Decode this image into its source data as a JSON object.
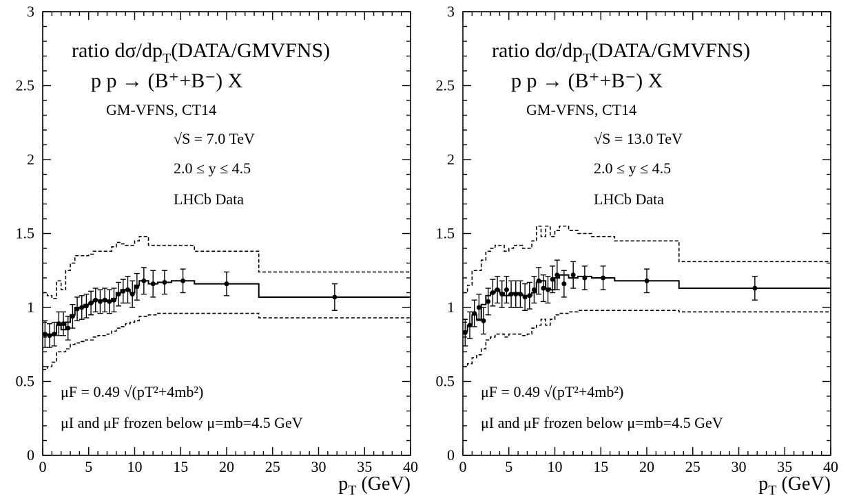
{
  "chart_data": [
    {
      "type": "line",
      "panel": "left",
      "title_line1": "ratio dσ/dp",
      "title_sub": "T",
      "title_rest": "(DATA/GMVFNS)",
      "process": "p p → (B⁺+B⁻) X",
      "labels": [
        "GM-VFNS, CT14",
        "√S = 7.0 TeV",
        "2.0 ≤  y ≤ 4.5",
        "LHCb Data"
      ],
      "scale_label": "μF = 0.49 √(pT²+4mb²)",
      "frozen_label": "μI and μF frozen below  μ=mb=4.5 GeV",
      "xlabel": "p",
      "xlabel_sub": "T",
      "xlabel_unit": " (GeV)",
      "xlim": [
        0,
        40
      ],
      "ylim": [
        0,
        3
      ],
      "x_ticks": [
        "0",
        "5",
        "10",
        "15",
        "20",
        "25",
        "30",
        "35",
        "40"
      ],
      "y_ticks": [
        "0",
        "0.5",
        "1",
        "1.5",
        "2",
        "2.5",
        "3"
      ],
      "bin_edges": [
        0,
        0.5,
        1.0,
        1.5,
        2.0,
        2.5,
        3.0,
        3.5,
        4.0,
        4.5,
        5.0,
        5.5,
        6.0,
        6.5,
        7.0,
        7.5,
        8.0,
        8.5,
        9.0,
        9.5,
        10.0,
        10.5,
        11.5,
        12.5,
        14.0,
        16.5,
        23.5,
        40.0
      ],
      "central": [
        0.82,
        0.81,
        0.82,
        0.88,
        0.85,
        0.9,
        0.95,
        1.0,
        1.0,
        1.02,
        1.03,
        1.05,
        1.05,
        1.05,
        1.04,
        1.06,
        1.1,
        1.12,
        1.12,
        1.1,
        1.15,
        1.18,
        1.16,
        1.17,
        1.18,
        1.16,
        1.07
      ],
      "upper": [
        1.1,
        1.08,
        1.06,
        1.18,
        1.12,
        1.25,
        1.3,
        1.35,
        1.35,
        1.35,
        1.36,
        1.38,
        1.38,
        1.38,
        1.38,
        1.41,
        1.44,
        1.43,
        1.42,
        1.42,
        1.45,
        1.48,
        1.42,
        1.42,
        1.42,
        1.38,
        1.24
      ],
      "lower": [
        0.58,
        0.6,
        0.63,
        0.7,
        0.7,
        0.72,
        0.75,
        0.76,
        0.77,
        0.78,
        0.78,
        0.8,
        0.81,
        0.81,
        0.82,
        0.84,
        0.86,
        0.87,
        0.89,
        0.9,
        0.91,
        0.94,
        0.95,
        0.96,
        0.96,
        0.96,
        0.93
      ],
      "points": [
        {
          "x": 0.25,
          "y": 0.82,
          "err": 0.09
        },
        {
          "x": 0.75,
          "y": 0.81,
          "err": 0.08
        },
        {
          "x": 1.25,
          "y": 0.82,
          "err": 0.08
        },
        {
          "x": 1.75,
          "y": 0.89,
          "err": 0.08
        },
        {
          "x": 2.25,
          "y": 0.89,
          "err": 0.08
        },
        {
          "x": 2.75,
          "y": 0.86,
          "err": 0.08
        },
        {
          "x": 3.25,
          "y": 0.94,
          "err": 0.08
        },
        {
          "x": 3.75,
          "y": 0.99,
          "err": 0.08
        },
        {
          "x": 4.25,
          "y": 1.0,
          "err": 0.08
        },
        {
          "x": 4.75,
          "y": 1.01,
          "err": 0.08
        },
        {
          "x": 5.25,
          "y": 1.03,
          "err": 0.08
        },
        {
          "x": 5.75,
          "y": 1.05,
          "err": 0.08
        },
        {
          "x": 6.25,
          "y": 1.04,
          "err": 0.08
        },
        {
          "x": 6.75,
          "y": 1.05,
          "err": 0.08
        },
        {
          "x": 7.25,
          "y": 1.04,
          "err": 0.08
        },
        {
          "x": 7.75,
          "y": 1.05,
          "err": 0.08
        },
        {
          "x": 8.25,
          "y": 1.09,
          "err": 0.08
        },
        {
          "x": 8.75,
          "y": 1.11,
          "err": 0.08
        },
        {
          "x": 9.25,
          "y": 1.12,
          "err": 0.09
        },
        {
          "x": 9.75,
          "y": 1.09,
          "err": 0.09
        },
        {
          "x": 10.25,
          "y": 1.14,
          "err": 0.09
        },
        {
          "x": 11.0,
          "y": 1.18,
          "err": 0.09
        },
        {
          "x": 12.0,
          "y": 1.16,
          "err": 0.09
        },
        {
          "x": 13.25,
          "y": 1.17,
          "err": 0.08
        },
        {
          "x": 15.25,
          "y": 1.18,
          "err": 0.08
        },
        {
          "x": 20.0,
          "y": 1.16,
          "err": 0.08
        },
        {
          "x": 31.75,
          "y": 1.07,
          "err": 0.09
        }
      ]
    },
    {
      "type": "line",
      "panel": "right",
      "title_line1": "ratio dσ/dp",
      "title_sub": "T",
      "title_rest": "(DATA/GMVFNS)",
      "process": "p p → (B⁺+B⁻) X",
      "labels": [
        "GM-VFNS, CT14",
        "√S = 13.0 TeV",
        "2.0 ≤  y ≤ 4.5",
        "LHCb Data"
      ],
      "scale_label": "μF = 0.49 √(pT²+4mb²)",
      "frozen_label": "μI and μF frozen below  μ=mb=4.5 GeV",
      "xlabel": "p",
      "xlabel_sub": "T",
      "xlabel_unit": " (GeV)",
      "xlim": [
        0,
        40
      ],
      "ylim": [
        0,
        3
      ],
      "x_ticks": [
        "0",
        "5",
        "10",
        "15",
        "20",
        "25",
        "30",
        "35",
        "40"
      ],
      "y_ticks": [
        "0",
        "0.5",
        "1",
        "1.5",
        "2",
        "2.5",
        "3"
      ],
      "bin_edges": [
        0,
        0.5,
        1.0,
        1.5,
        2.0,
        2.5,
        3.0,
        3.5,
        4.0,
        4.5,
        5.0,
        5.5,
        6.0,
        6.5,
        7.0,
        7.5,
        8.0,
        8.5,
        9.0,
        9.5,
        10.0,
        10.5,
        11.5,
        12.5,
        14.0,
        16.5,
        23.5,
        40.0
      ],
      "central": [
        0.84,
        0.88,
        0.95,
        0.92,
        1.02,
        1.08,
        1.1,
        1.12,
        1.1,
        1.08,
        1.09,
        1.1,
        1.09,
        1.08,
        1.08,
        1.1,
        1.17,
        1.18,
        1.13,
        1.12,
        1.2,
        1.22,
        1.2,
        1.21,
        1.2,
        1.18,
        1.13
      ],
      "upper": [
        1.1,
        1.15,
        1.25,
        1.25,
        1.32,
        1.38,
        1.4,
        1.42,
        1.42,
        1.38,
        1.4,
        1.42,
        1.42,
        1.4,
        1.4,
        1.45,
        1.55,
        1.48,
        1.55,
        1.48,
        1.52,
        1.55,
        1.52,
        1.5,
        1.48,
        1.45,
        1.31
      ],
      "lower": [
        0.6,
        0.62,
        0.66,
        0.68,
        0.72,
        0.78,
        0.8,
        0.82,
        0.82,
        0.8,
        0.82,
        0.82,
        0.82,
        0.81,
        0.82,
        0.86,
        0.88,
        0.92,
        0.88,
        0.92,
        0.95,
        0.96,
        0.97,
        0.98,
        0.98,
        0.98,
        0.97
      ],
      "points": [
        {
          "x": 0.25,
          "y": 0.83,
          "err": 0.09
        },
        {
          "x": 0.75,
          "y": 0.88,
          "err": 0.09
        },
        {
          "x": 1.25,
          "y": 0.96,
          "err": 0.09
        },
        {
          "x": 1.75,
          "y": 1.0,
          "err": 0.09
        },
        {
          "x": 2.25,
          "y": 0.91,
          "err": 0.09
        },
        {
          "x": 2.75,
          "y": 1.04,
          "err": 0.09
        },
        {
          "x": 3.25,
          "y": 1.1,
          "err": 0.09
        },
        {
          "x": 3.75,
          "y": 1.12,
          "err": 0.09
        },
        {
          "x": 4.25,
          "y": 1.09,
          "err": 0.09
        },
        {
          "x": 4.75,
          "y": 1.12,
          "err": 0.09
        },
        {
          "x": 5.25,
          "y": 1.09,
          "err": 0.09
        },
        {
          "x": 5.75,
          "y": 1.09,
          "err": 0.09
        },
        {
          "x": 6.25,
          "y": 1.09,
          "err": 0.09
        },
        {
          "x": 6.75,
          "y": 1.07,
          "err": 0.09
        },
        {
          "x": 7.25,
          "y": 1.08,
          "err": 0.09
        },
        {
          "x": 7.75,
          "y": 1.12,
          "err": 0.09
        },
        {
          "x": 8.25,
          "y": 1.18,
          "err": 0.09
        },
        {
          "x": 8.75,
          "y": 1.13,
          "err": 0.09
        },
        {
          "x": 9.25,
          "y": 1.12,
          "err": 0.09
        },
        {
          "x": 9.75,
          "y": 1.19,
          "err": 0.09
        },
        {
          "x": 10.25,
          "y": 1.22,
          "err": 0.1
        },
        {
          "x": 11.0,
          "y": 1.16,
          "err": 0.09
        },
        {
          "x": 12.0,
          "y": 1.22,
          "err": 0.09
        },
        {
          "x": 13.25,
          "y": 1.2,
          "err": 0.08
        },
        {
          "x": 15.25,
          "y": 1.2,
          "err": 0.08
        },
        {
          "x": 20.0,
          "y": 1.18,
          "err": 0.08
        },
        {
          "x": 31.75,
          "y": 1.13,
          "err": 0.08
        }
      ]
    }
  ]
}
